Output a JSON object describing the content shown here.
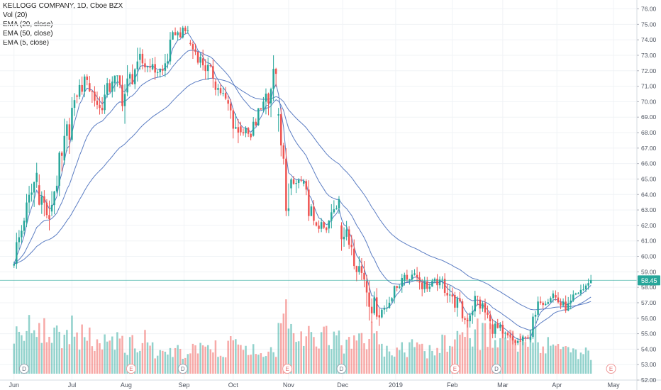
{
  "chart_data": {
    "type": "candlestick",
    "title": "KELLOGG COMPANY, 1D, Cboe BZX",
    "indicators": [
      "Vol (20)",
      "EMA (20, close)",
      "EMA (50, close)",
      "EMA (5, close)"
    ],
    "last_price": 58.45,
    "last_price_label": "58.45",
    "ylim": [
      52.0,
      76.3
    ],
    "y_ticks": [
      "76.00",
      "75.00",
      "74.00",
      "73.00",
      "72.00",
      "71.00",
      "70.00",
      "69.00",
      "68.00",
      "67.00",
      "66.00",
      "65.00",
      "64.00",
      "63.00",
      "62.00",
      "61.00",
      "60.00",
      "59.00",
      "58.00",
      "57.00",
      "56.00",
      "55.00",
      "54.00",
      "53.00",
      "52.00"
    ],
    "x_labels": [
      {
        "label": "Jun",
        "week": 1
      },
      {
        "label": "Jul",
        "week": 5.6
      },
      {
        "label": "Aug",
        "week": 9.9
      },
      {
        "label": "Sep",
        "week": 14.5
      },
      {
        "label": "Oct",
        "week": 18.4
      },
      {
        "label": "Nov",
        "week": 22.8
      },
      {
        "label": "Dec",
        "week": 27.1
      },
      {
        "label": "2019",
        "week": 31.3
      },
      {
        "label": "Feb",
        "week": 35.8
      },
      {
        "label": "Mar",
        "week": 39.8
      },
      {
        "label": "Apr",
        "week": 44.1
      },
      {
        "label": "May",
        "week": 48.6
      }
    ],
    "event_markers": [
      {
        "label": "D",
        "week": 1.8
      },
      {
        "label": "E",
        "week": 10.3
      },
      {
        "label": "D",
        "week": 14.4
      },
      {
        "label": "E",
        "week": 22.7
      },
      {
        "label": "D",
        "week": 27.0
      },
      {
        "label": "E",
        "week": 36.0
      },
      {
        "label": "D",
        "week": 39.3
      },
      {
        "label": "E",
        "week": 48.4
      }
    ],
    "colors": {
      "up": "#26a69a",
      "down": "#ef5350",
      "ema": "#5b7dc3",
      "price_line": "#26a69a",
      "marker": "#9aa5b1"
    },
    "weeks": [
      {
        "o": 59.4,
        "h": 62.5,
        "l": 59.2,
        "c": 62.3,
        "v": 0.95
      },
      {
        "o": 62.2,
        "h": 66.3,
        "l": 61.9,
        "c": 65.4,
        "v": 1.1
      },
      {
        "o": 64.6,
        "h": 65.3,
        "l": 61.5,
        "c": 62.4,
        "v": 1.0
      },
      {
        "o": 62.9,
        "h": 66.8,
        "l": 62.6,
        "c": 66.5,
        "v": 0.9
      },
      {
        "o": 66.2,
        "h": 70.8,
        "l": 65.9,
        "c": 70.1,
        "v": 1.05
      },
      {
        "o": 70.4,
        "h": 72.2,
        "l": 69.9,
        "c": 71.4,
        "v": 0.85
      },
      {
        "o": 71.2,
        "h": 71.8,
        "l": 68.9,
        "c": 69.6,
        "v": 0.8
      },
      {
        "o": 69.6,
        "h": 72.0,
        "l": 69.2,
        "c": 71.3,
        "v": 0.7
      },
      {
        "o": 71.2,
        "h": 71.7,
        "l": 66.8,
        "c": 70.5,
        "v": 0.75
      },
      {
        "o": 70.6,
        "h": 73.9,
        "l": 70.3,
        "c": 72.6,
        "v": 0.7
      },
      {
        "o": 72.7,
        "h": 74.6,
        "l": 71.9,
        "c": 72.2,
        "v": 0.8
      },
      {
        "o": 72.1,
        "h": 73.1,
        "l": 71.2,
        "c": 72.0,
        "v": 0.55
      },
      {
        "o": 72.0,
        "h": 74.8,
        "l": 71.6,
        "c": 74.3,
        "v": 0.6
      },
      {
        "o": 74.3,
        "h": 74.9,
        "l": 73.5,
        "c": 74.6,
        "v": 0.5
      },
      {
        "o": 73.8,
        "h": 74.0,
        "l": 71.5,
        "c": 72.9,
        "v": 0.6
      },
      {
        "o": 72.8,
        "h": 73.4,
        "l": 70.9,
        "c": 71.5,
        "v": 0.55
      },
      {
        "o": 71.3,
        "h": 71.5,
        "l": 69.8,
        "c": 70.2,
        "v": 0.6
      },
      {
        "o": 70.1,
        "h": 70.4,
        "l": 66.9,
        "c": 68.0,
        "v": 0.65
      },
      {
        "o": 68.4,
        "h": 69.1,
        "l": 67.5,
        "c": 67.7,
        "v": 0.55
      },
      {
        "o": 67.8,
        "h": 70.3,
        "l": 67.3,
        "c": 70.0,
        "v": 0.6
      },
      {
        "o": 70.0,
        "h": 73.0,
        "l": 69.0,
        "c": 71.8,
        "v": 0.55
      },
      {
        "o": 69.1,
        "h": 69.6,
        "l": 62.6,
        "c": 63.1,
        "v": 1.45
      },
      {
        "o": 64.4,
        "h": 65.2,
        "l": 62.8,
        "c": 64.9,
        "v": 0.9
      },
      {
        "o": 64.7,
        "h": 65.0,
        "l": 61.9,
        "c": 62.3,
        "v": 0.85
      },
      {
        "o": 62.2,
        "h": 62.5,
        "l": 61.1,
        "c": 61.7,
        "v": 0.85
      },
      {
        "o": 61.8,
        "h": 63.9,
        "l": 61.4,
        "c": 63.7,
        "v": 0.75
      },
      {
        "o": 62.0,
        "h": 63.1,
        "l": 59.8,
        "c": 60.6,
        "v": 0.7
      },
      {
        "o": 60.5,
        "h": 61.3,
        "l": 58.0,
        "c": 58.5,
        "v": 0.8
      },
      {
        "o": 58.4,
        "h": 58.8,
        "l": 55.0,
        "c": 56.1,
        "v": 0.9
      },
      {
        "o": 56.2,
        "h": 57.9,
        "l": 55.5,
        "c": 57.0,
        "v": 0.6
      },
      {
        "o": 57.1,
        "h": 58.9,
        "l": 56.9,
        "c": 58.6,
        "v": 0.55
      },
      {
        "o": 58.4,
        "h": 59.5,
        "l": 58.1,
        "c": 58.9,
        "v": 0.6
      },
      {
        "o": 58.8,
        "h": 59.4,
        "l": 57.0,
        "c": 57.9,
        "v": 0.55
      },
      {
        "o": 57.9,
        "h": 58.9,
        "l": 57.4,
        "c": 58.5,
        "v": 0.5
      },
      {
        "o": 58.5,
        "h": 59.2,
        "l": 56.7,
        "c": 57.4,
        "v": 0.7
      },
      {
        "o": 57.5,
        "h": 57.7,
        "l": 54.9,
        "c": 55.9,
        "v": 1.1
      },
      {
        "o": 55.9,
        "h": 58.6,
        "l": 55.4,
        "c": 57.4,
        "v": 1.0
      },
      {
        "o": 57.2,
        "h": 57.4,
        "l": 54.8,
        "c": 55.8,
        "v": 0.9
      },
      {
        "o": 55.6,
        "h": 57.0,
        "l": 54.7,
        "c": 55.0,
        "v": 0.85
      },
      {
        "o": 55.0,
        "h": 55.2,
        "l": 53.9,
        "c": 54.4,
        "v": 0.8
      },
      {
        "o": 54.4,
        "h": 55.0,
        "l": 53.8,
        "c": 54.7,
        "v": 0.7
      },
      {
        "o": 54.6,
        "h": 57.4,
        "l": 54.4,
        "c": 57.0,
        "v": 0.8
      },
      {
        "o": 57.0,
        "h": 57.8,
        "l": 56.2,
        "c": 57.6,
        "v": 0.65
      },
      {
        "o": 57.5,
        "h": 57.8,
        "l": 55.9,
        "c": 56.5,
        "v": 0.55
      },
      {
        "o": 56.5,
        "h": 57.9,
        "l": 56.2,
        "c": 57.6,
        "v": 0.5
      },
      {
        "o": 57.6,
        "h": 58.8,
        "l": 57.3,
        "c": 58.45,
        "v": 0.45
      }
    ]
  }
}
